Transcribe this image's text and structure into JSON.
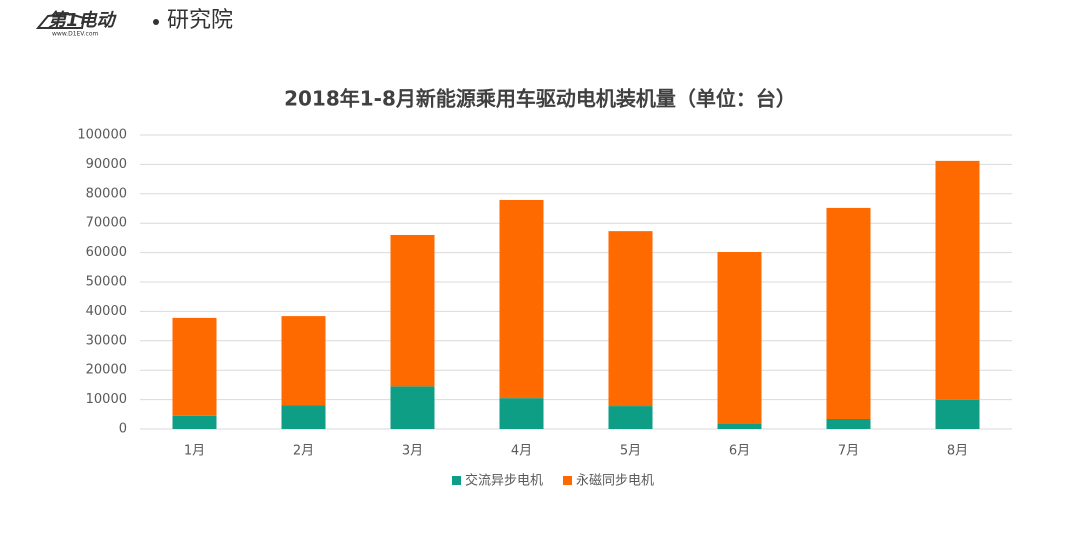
{
  "brand": {
    "name": "第1电动",
    "site": "www.D1EV.com",
    "unit": "研究院"
  },
  "chart_data": {
    "type": "stacked_bar",
    "title": "2018年1-8月新能源乘用车驱动电机装机量（单位：台）",
    "categories": [
      "1月",
      "2月",
      "3月",
      "4月",
      "5月",
      "6月",
      "7月",
      "8月"
    ],
    "series": [
      {
        "name": "交流异步电机",
        "color": "#0e9e86",
        "values": [
          4500,
          8000,
          14500,
          10500,
          7800,
          1700,
          3400,
          9900
        ]
      },
      {
        "name": "永磁同步电机",
        "color": "#ff6a00",
        "values": [
          33300,
          30400,
          51500,
          67400,
          59500,
          58500,
          71800,
          81300
        ]
      }
    ],
    "ylim": [
      0,
      100000
    ],
    "yticks": [
      0,
      10000,
      20000,
      30000,
      40000,
      50000,
      60000,
      70000,
      80000,
      90000,
      100000
    ],
    "grid": true,
    "legend": "bottom"
  }
}
